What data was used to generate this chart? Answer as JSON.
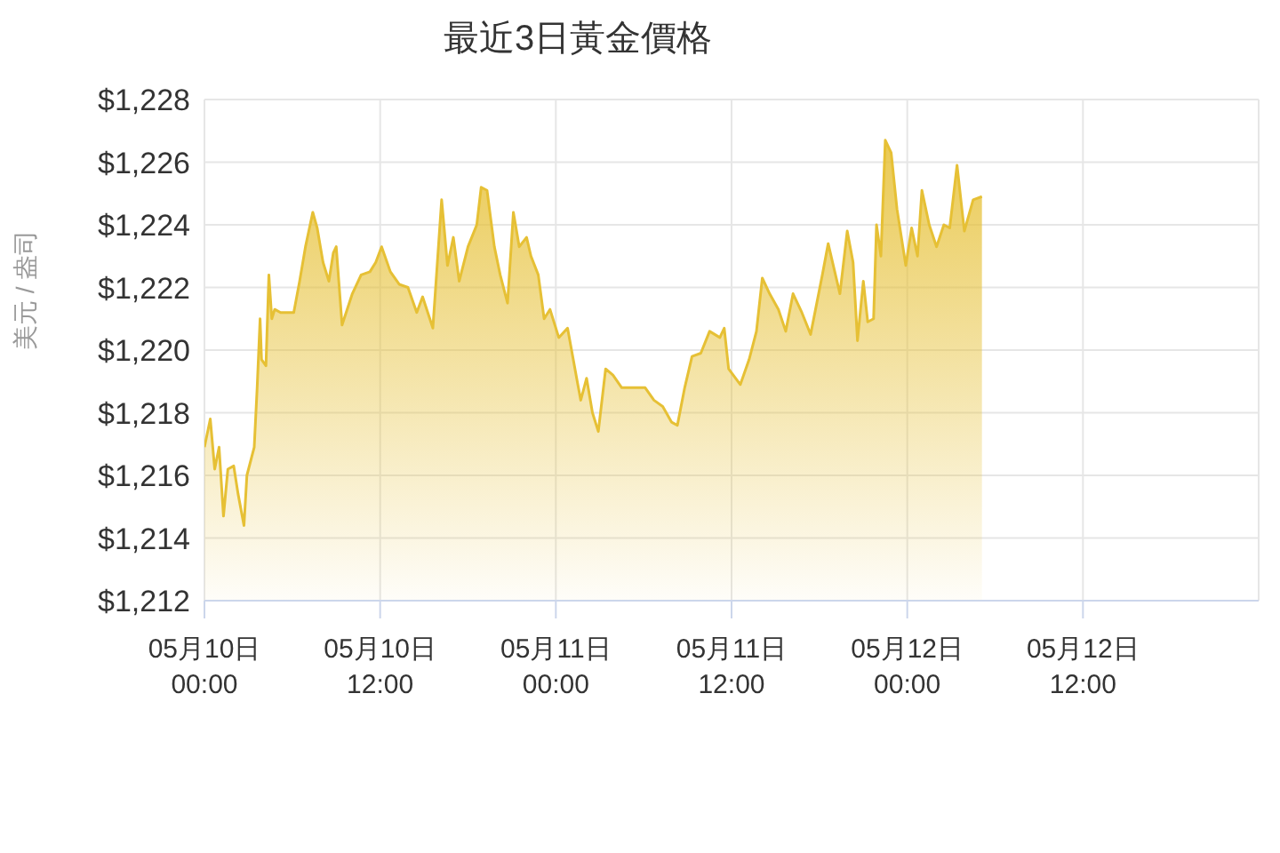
{
  "chart_data": {
    "type": "area",
    "title": "最近3日黃金價格",
    "ylabel": "美元 / 盎司",
    "x": [
      "--05-10T00:00",
      "--05-10T00:24",
      "--05-10T00:42",
      "--05-10T01:00",
      "--05-10T01:18",
      "--05-10T01:36",
      "--05-10T02:00",
      "--05-10T02:18",
      "--05-10T02:42",
      "--05-10T02:54",
      "--05-10T03:24",
      "--05-10T03:36",
      "--05-10T03:48",
      "--05-10T03:54",
      "--05-10T04:12",
      "--05-10T04:24",
      "--05-10T04:36",
      "--05-10T04:48",
      "--05-10T05:12",
      "--05-10T06:06",
      "--05-10T06:30",
      "--05-10T06:54",
      "--05-10T07:24",
      "--05-10T07:42",
      "--05-10T08:06",
      "--05-10T08:30",
      "--05-10T08:48",
      "--05-10T09:00",
      "--05-10T09:24",
      "--05-10T10:06",
      "--05-10T10:42",
      "--05-10T11:18",
      "--05-10T11:42",
      "--05-10T12:06",
      "--05-10T12:42",
      "--05-10T13:18",
      "--05-10T13:54",
      "--05-10T14:30",
      "--05-10T14:54",
      "--05-10T15:36",
      "--05-10T16:12",
      "--05-10T16:36",
      "--05-10T17:00",
      "--05-10T17:24",
      "--05-10T18:00",
      "--05-10T18:36",
      "--05-10T18:54",
      "--05-10T19:18",
      "--05-10T19:48",
      "--05-10T20:12",
      "--05-10T20:42",
      "--05-10T21:06",
      "--05-10T21:30",
      "--05-10T22:00",
      "--05-10T22:18",
      "--05-10T22:48",
      "--05-10T23:12",
      "--05-10T23:36",
      "--05-11T00:12",
      "--05-11T00:48",
      "--05-11T01:30",
      "--05-11T01:42",
      "--05-11T02:06",
      "--05-11T02:30",
      "--05-11T02:54",
      "--05-11T03:24",
      "--05-11T03:54",
      "--05-11T04:30",
      "--05-11T05:06",
      "--05-11T06:06",
      "--05-11T06:42",
      "--05-11T07:18",
      "--05-11T07:54",
      "--05-11T08:18",
      "--05-11T08:48",
      "--05-11T09:18",
      "--05-11T09:54",
      "--05-11T10:30",
      "--05-11T11:12",
      "--05-11T11:30",
      "--05-11T11:48",
      "--05-11T12:36",
      "--05-11T13:12",
      "--05-11T13:42",
      "--05-11T14:06",
      "--05-11T14:36",
      "--05-11T15:12",
      "--05-11T15:42",
      "--05-11T16:12",
      "--05-11T16:48",
      "--05-11T17:24",
      "--05-11T18:12",
      "--05-11T18:36",
      "--05-11T19:00",
      "--05-11T19:24",
      "--05-11T19:54",
      "--05-11T20:18",
      "--05-11T20:36",
      "--05-11T21:00",
      "--05-11T21:18",
      "--05-11T21:42",
      "--05-11T21:54",
      "--05-11T22:12",
      "--05-11T22:30",
      "--05-11T22:54",
      "--05-11T23:18",
      "--05-11T23:54",
      "--05-12T00:18",
      "--05-12T00:42",
      "--05-12T01:00",
      "--05-12T01:30",
      "--05-12T02:00",
      "--05-12T02:30",
      "--05-12T02:54",
      "--05-12T03:24",
      "--05-12T03:54",
      "--05-12T04:30",
      "--05-12T05:06"
    ],
    "series": [
      {
        "color": "#e6c035",
        "values": [
          1216.9,
          1217.8,
          1216.2,
          1216.9,
          1214.7,
          1216.2,
          1216.3,
          1215.4,
          1214.4,
          1216.0,
          1216.9,
          1218.8,
          1221.0,
          1219.7,
          1219.5,
          1222.4,
          1221.0,
          1221.3,
          1221.2,
          1221.2,
          1222.2,
          1223.3,
          1224.4,
          1223.9,
          1222.8,
          1222.2,
          1223.1,
          1223.3,
          1220.8,
          1221.8,
          1222.4,
          1222.5,
          1222.8,
          1223.3,
          1222.5,
          1222.1,
          1222.0,
          1221.2,
          1221.7,
          1220.7,
          1224.8,
          1222.7,
          1223.6,
          1222.2,
          1223.3,
          1224.0,
          1225.2,
          1225.1,
          1223.3,
          1222.4,
          1221.5,
          1224.4,
          1223.3,
          1223.6,
          1223.0,
          1222.4,
          1221.0,
          1221.3,
          1220.4,
          1220.7,
          1218.9,
          1218.4,
          1219.1,
          1218.0,
          1217.4,
          1219.4,
          1219.2,
          1218.8,
          1218.8,
          1218.8,
          1218.4,
          1218.2,
          1217.7,
          1217.6,
          1218.8,
          1219.8,
          1219.9,
          1220.6,
          1220.4,
          1220.7,
          1219.4,
          1218.9,
          1219.7,
          1220.6,
          1222.3,
          1221.8,
          1221.3,
          1220.6,
          1221.8,
          1221.2,
          1220.5,
          1222.4,
          1223.4,
          1222.6,
          1221.8,
          1223.8,
          1222.8,
          1220.3,
          1222.2,
          1220.9,
          1221.0,
          1224.0,
          1223.0,
          1226.7,
          1226.3,
          1224.5,
          1222.7,
          1223.9,
          1223.0,
          1225.1,
          1224.0,
          1223.3,
          1224.0,
          1223.9,
          1225.9,
          1223.8,
          1224.8,
          1224.9
        ]
      }
    ],
    "xlim": [
      "--05-10T00:00",
      "--05-13T00:00"
    ],
    "xticks": [
      {
        "value": "--05-10T00:00",
        "label": "05月10日\n00:00"
      },
      {
        "value": "--05-10T12:00",
        "label": "05月10日\n12:00"
      },
      {
        "value": "--05-11T00:00",
        "label": "05月11日\n00:00"
      },
      {
        "value": "--05-11T12:00",
        "label": "05月11日\n12:00"
      },
      {
        "value": "--05-12T00:00",
        "label": "05月12日\n00:00"
      },
      {
        "value": "--05-12T12:00",
        "label": "05月12日\n12:00"
      }
    ],
    "ylim": [
      1212,
      1228
    ],
    "yticks": [
      {
        "value": 1212,
        "label": "$1,212"
      },
      {
        "value": 1214,
        "label": "$1,214"
      },
      {
        "value": 1216,
        "label": "$1,216"
      },
      {
        "value": 1218,
        "label": "$1,218"
      },
      {
        "value": 1220,
        "label": "$1,220"
      },
      {
        "value": 1222,
        "label": "$1,222"
      },
      {
        "value": 1224,
        "label": "$1,224"
      },
      {
        "value": 1226,
        "label": "$1,226"
      },
      {
        "value": 1228,
        "label": "$1,228"
      }
    ],
    "grid": true,
    "legend": false,
    "marker": "none",
    "line_style": "solid"
  }
}
